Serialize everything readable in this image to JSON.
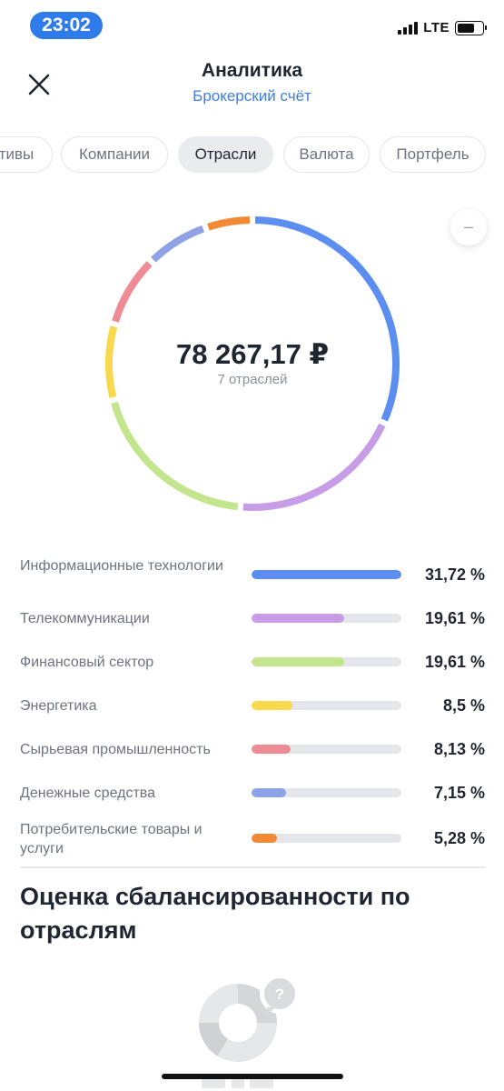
{
  "status_bar": {
    "time": "23:02",
    "network": "LTE"
  },
  "header": {
    "title": "Аналитика",
    "subtitle": "Брокерский счёт",
    "close_icon": "close-icon"
  },
  "tabs": [
    {
      "label": "тивы",
      "active": false
    },
    {
      "label": "Компании",
      "active": false
    },
    {
      "label": "Отрасли",
      "active": true
    },
    {
      "label": "Валюта",
      "active": false
    },
    {
      "label": "Портфель",
      "active": false
    }
  ],
  "summary": {
    "total": "78 267,17 ₽",
    "count_label": "7 отраслей",
    "collapse_label": "–"
  },
  "chart_data": {
    "type": "pie",
    "categories": [
      "Информационные технологии",
      "Телекоммуникации",
      "Финансовый сектор",
      "Энергетика",
      "Сырьевая промышленность",
      "Денежные средства",
      "Потребительские товары и услуги"
    ],
    "values": [
      31.72,
      19.61,
      19.61,
      8.5,
      8.13,
      7.15,
      5.28
    ],
    "colors": [
      "#5b8ef0",
      "#c89de8",
      "#c2e58e",
      "#f8d84c",
      "#ef8b95",
      "#8fa2e6",
      "#f28a35"
    ]
  },
  "legend": [
    {
      "name": "Информационные технологии",
      "pct": "31,72 %",
      "share": 1.0
    },
    {
      "name": "Телекоммуникации",
      "pct": "19,61 %",
      "share": 0.62
    },
    {
      "name": "Финансовый сектор",
      "pct": "19,61 %",
      "share": 0.62
    },
    {
      "name": "Энергетика",
      "pct": "8,5 %",
      "share": 0.27
    },
    {
      "name": "Сырьевая промышленность",
      "pct": "8,13 %",
      "share": 0.26
    },
    {
      "name": "Денежные средства",
      "pct": "7,15 %",
      "share": 0.23
    },
    {
      "name": "Потребительские товары и услуги",
      "pct": "5,28 %",
      "share": 0.17
    }
  ],
  "balance_section": {
    "title": "Оценка сбалансированности по отраслям",
    "help_glyph": "?"
  }
}
